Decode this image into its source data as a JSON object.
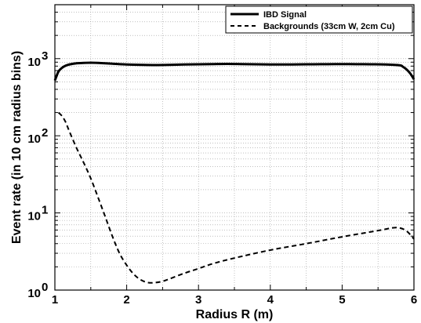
{
  "chart_data": {
    "type": "line",
    "xlabel": "Radius R (m)",
    "ylabel": "Event rate (in 10 cm radius bins)",
    "xlim": [
      1,
      6
    ],
    "ylim": [
      1,
      5000
    ],
    "yscale": "log",
    "grid": true,
    "legend_position": "top-right",
    "x_ticks": [
      {
        "value": 1,
        "label": "1"
      },
      {
        "value": 2,
        "label": "2"
      },
      {
        "value": 3,
        "label": "3"
      },
      {
        "value": 4,
        "label": "4"
      },
      {
        "value": 5,
        "label": "5"
      },
      {
        "value": 6,
        "label": "6"
      }
    ],
    "y_ticks": [
      {
        "value": 1,
        "base": "10",
        "exp": "0"
      },
      {
        "value": 10,
        "base": "10",
        "exp": "1"
      },
      {
        "value": 100,
        "base": "10",
        "exp": "2"
      },
      {
        "value": 1000,
        "base": "10",
        "exp": "3"
      }
    ],
    "series": [
      {
        "name": "IBD Signal",
        "style": "solid",
        "color": "#000000",
        "x": [
          1.0,
          1.05,
          1.1,
          1.15,
          1.2,
          1.3,
          1.4,
          1.5,
          1.6,
          1.8,
          2.0,
          2.2,
          2.4,
          2.6,
          2.8,
          3.0,
          3.2,
          3.4,
          3.6,
          3.8,
          4.0,
          4.2,
          4.4,
          4.6,
          4.8,
          5.0,
          5.2,
          5.4,
          5.6,
          5.8,
          5.85,
          5.9,
          5.95,
          6.0
        ],
        "y": [
          520,
          680,
          760,
          810,
          840,
          870,
          880,
          885,
          880,
          860,
          840,
          830,
          825,
          830,
          840,
          845,
          850,
          855,
          850,
          845,
          840,
          840,
          842,
          845,
          848,
          850,
          848,
          845,
          840,
          820,
          780,
          720,
          640,
          540
        ]
      },
      {
        "name": "Backgrounds (33cm W, 2cm Cu)",
        "style": "dashed",
        "color": "#000000",
        "x": [
          1.05,
          1.1,
          1.15,
          1.2,
          1.3,
          1.4,
          1.5,
          1.6,
          1.7,
          1.8,
          1.9,
          2.0,
          2.1,
          2.2,
          2.3,
          2.4,
          2.5,
          2.6,
          2.8,
          3.0,
          3.2,
          3.5,
          4.0,
          4.5,
          5.0,
          5.5,
          5.7,
          5.8,
          5.9,
          6.0
        ],
        "y": [
          200,
          180,
          150,
          115,
          70,
          45,
          28,
          16,
          9,
          5,
          3,
          2.1,
          1.6,
          1.35,
          1.25,
          1.25,
          1.3,
          1.4,
          1.65,
          1.9,
          2.2,
          2.6,
          3.3,
          4.0,
          4.9,
          5.9,
          6.4,
          6.4,
          5.8,
          4.6
        ]
      }
    ]
  }
}
